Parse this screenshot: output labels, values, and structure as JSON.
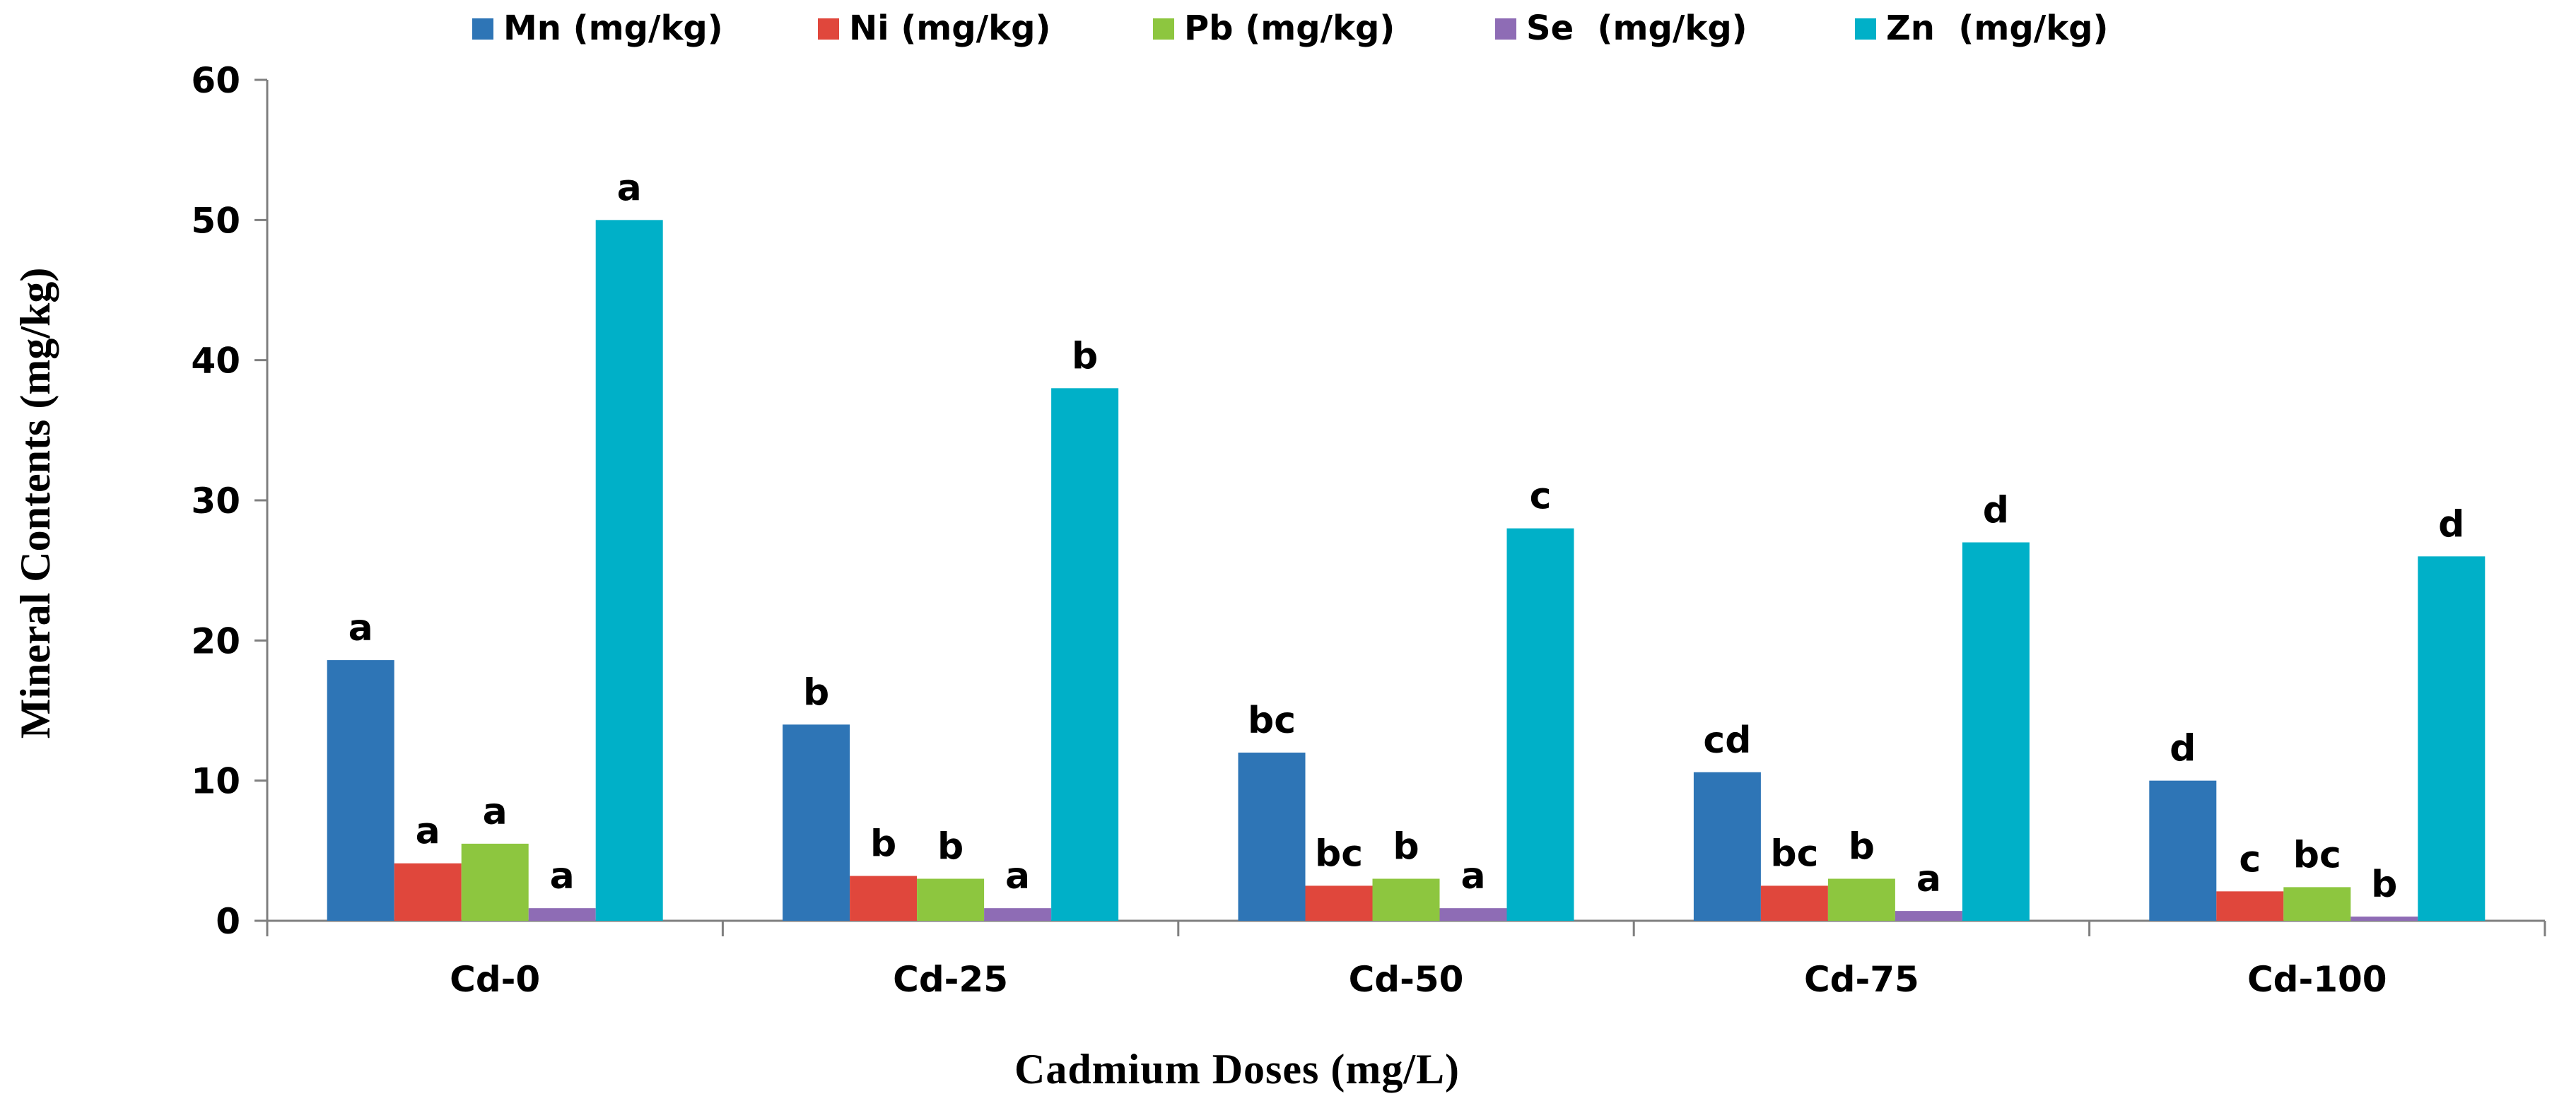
{
  "chart_data": {
    "type": "bar",
    "title": "",
    "xlabel": "Cadmium Doses (mg/L)",
    "ylabel": "Mineral Contents (mg/kg)",
    "ylim": [
      0,
      60
    ],
    "yticks": [
      "0",
      "10",
      "20",
      "30",
      "40",
      "50",
      "60"
    ],
    "categories": [
      "Cd-0",
      "Cd-25",
      "Cd-50",
      "Cd-75",
      "Cd-100"
    ],
    "legend_position": "top",
    "series": [
      {
        "name": "Mn (mg/kg)",
        "color": "#2E75B6",
        "values": [
          18.6,
          14.0,
          12.0,
          10.6,
          10.0
        ],
        "labels": [
          "a",
          "b",
          "bc",
          "cd",
          "d"
        ]
      },
      {
        "name": "Ni (mg/kg)",
        "color": "#E0473C",
        "values": [
          4.1,
          3.2,
          2.5,
          2.5,
          2.1
        ],
        "labels": [
          "a",
          "b",
          "bc",
          "bc",
          "c"
        ]
      },
      {
        "name": "Pb (mg/kg)",
        "color": "#8DC63F",
        "values": [
          5.5,
          3.0,
          3.0,
          3.0,
          2.4
        ],
        "labels": [
          "a",
          "b",
          "b",
          "b",
          "bc"
        ]
      },
      {
        "name": "Se  (mg/kg)",
        "color": "#8E6CB5",
        "values": [
          0.9,
          0.9,
          0.9,
          0.7,
          0.3
        ],
        "labels": [
          "a",
          "a",
          "a",
          "a",
          "b"
        ]
      },
      {
        "name": "Zn  (mg/kg)",
        "color": "#00B0C8",
        "values": [
          50.0,
          38.0,
          28.0,
          27.0,
          26.0
        ],
        "labels": [
          "a",
          "b",
          "c",
          "d",
          "d"
        ]
      }
    ]
  }
}
